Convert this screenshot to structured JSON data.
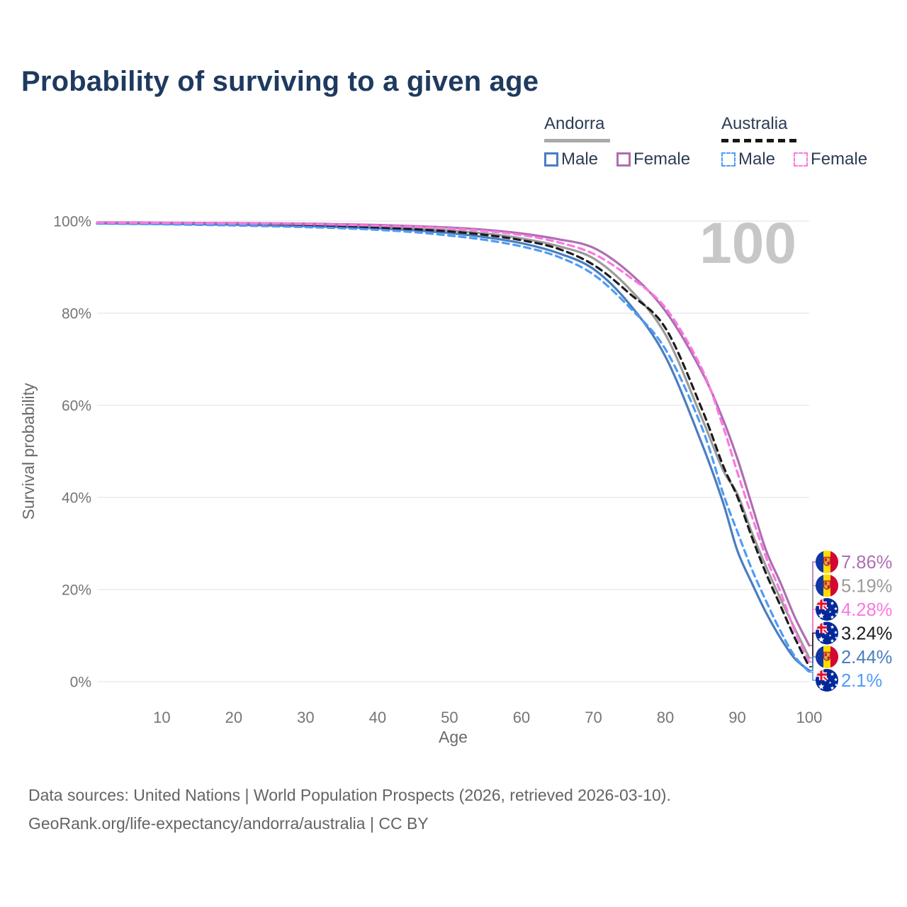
{
  "title": "Probability of surviving to a given age",
  "watermark": "100",
  "legend": {
    "groups": [
      {
        "country": "Andorra",
        "line_style": "solid",
        "line_color": "#a9a9a9",
        "items": [
          {
            "label": "Male",
            "series": "andorra_male"
          },
          {
            "label": "Female",
            "series": "andorra_female"
          }
        ]
      },
      {
        "country": "Australia",
        "line_style": "dashed",
        "line_color": "#161616",
        "items": [
          {
            "label": "Male",
            "series": "australia_male"
          },
          {
            "label": "Female",
            "series": "australia_female"
          }
        ]
      }
    ]
  },
  "chart_data": {
    "type": "line",
    "title": "Probability of surviving to a given age",
    "xlabel": "Age",
    "ylabel": "Survival probability",
    "xlim": [
      1,
      100
    ],
    "ylim": [
      0,
      100
    ],
    "grid": true,
    "x_ticks": [
      10,
      20,
      30,
      40,
      50,
      60,
      70,
      80,
      90,
      100
    ],
    "y_ticks": [
      {
        "value": 0,
        "label": "0%"
      },
      {
        "value": 20,
        "label": "20%"
      },
      {
        "value": 40,
        "label": "40%"
      },
      {
        "value": 60,
        "label": "60%"
      },
      {
        "value": 80,
        "label": "80%"
      },
      {
        "value": 100,
        "label": "100%"
      }
    ],
    "ages": [
      1,
      10,
      20,
      30,
      35,
      40,
      45,
      50,
      55,
      60,
      65,
      70,
      75,
      80,
      85,
      88,
      90,
      92,
      94,
      96,
      98,
      100
    ],
    "series": [
      {
        "name": "andorra_total",
        "country": "Andorra",
        "group": "Both sexes",
        "color": "#9b9b9b",
        "dashed": false,
        "flag": "andorra",
        "end_label": "5.19%",
        "values": [
          99.6,
          99.5,
          99.35,
          99.15,
          98.95,
          98.7,
          98.4,
          97.95,
          97.3,
          96.25,
          94.6,
          91.9,
          85.3,
          75.4,
          57.5,
          46.0,
          40.8,
          32.5,
          25.0,
          18.0,
          11.5,
          5.19
        ]
      },
      {
        "name": "andorra_male",
        "country": "Andorra",
        "group": "Male",
        "color": "#4a7dc0",
        "dashed": false,
        "flag": "andorra",
        "end_label": "2.44%",
        "values": [
          99.5,
          99.4,
          99.2,
          98.9,
          98.7,
          98.4,
          98.0,
          97.4,
          96.5,
          95.2,
          93.1,
          89.6,
          82.0,
          70.6,
          52.0,
          39.0,
          28.5,
          21.5,
          15.0,
          9.5,
          5.0,
          2.44
        ]
      },
      {
        "name": "andorra_female",
        "country": "Andorra",
        "group": "Female",
        "color": "#ad6fb0",
        "dashed": false,
        "flag": "andorra",
        "end_label": "7.86%",
        "values": [
          99.7,
          99.65,
          99.55,
          99.45,
          99.3,
          99.15,
          98.9,
          98.6,
          98.1,
          97.3,
          96.1,
          94.2,
          88.8,
          80.5,
          67.5,
          57.0,
          48.5,
          38.5,
          28.5,
          21.5,
          14.0,
          7.86
        ]
      },
      {
        "name": "australia_total",
        "country": "Australia",
        "group": "Both sexes",
        "color": "#1c1c1c",
        "dashed": true,
        "flag": "australia",
        "end_label": "3.24%",
        "values": [
          99.55,
          99.45,
          99.3,
          99.05,
          98.85,
          98.6,
          98.25,
          97.75,
          97.0,
          95.85,
          94.05,
          90.5,
          84.3,
          76.8,
          59.5,
          47.0,
          40.2,
          31.5,
          23.5,
          16.5,
          9.5,
          3.24
        ]
      },
      {
        "name": "australia_male",
        "country": "Australia",
        "group": "Male",
        "color": "#4f9bf5",
        "dashed": true,
        "flag": "australia",
        "end_label": "2.1%",
        "values": [
          99.45,
          99.3,
          99.05,
          98.7,
          98.45,
          98.1,
          97.6,
          96.85,
          95.9,
          94.5,
          92.3,
          88.4,
          81.3,
          72.2,
          55.5,
          41.0,
          32.6,
          24.5,
          17.5,
          11.0,
          5.5,
          2.1
        ]
      },
      {
        "name": "australia_female",
        "country": "Australia",
        "group": "Female",
        "color": "#fc77e2",
        "dashed": true,
        "flag": "australia",
        "end_label": "4.28%",
        "values": [
          99.65,
          99.6,
          99.5,
          99.35,
          99.2,
          99.0,
          98.75,
          98.4,
          97.85,
          96.95,
          95.45,
          92.9,
          87.9,
          81.2,
          68.2,
          55.5,
          45.5,
          36.0,
          27.0,
          19.5,
          11.0,
          4.28
        ]
      }
    ]
  },
  "footer": {
    "line1": "Data sources: United Nations | World Population Prospects (2026, retrieved 2026-03-10).",
    "line2": "GeoRank.org/life-expectancy/andorra/australia | CC BY"
  }
}
